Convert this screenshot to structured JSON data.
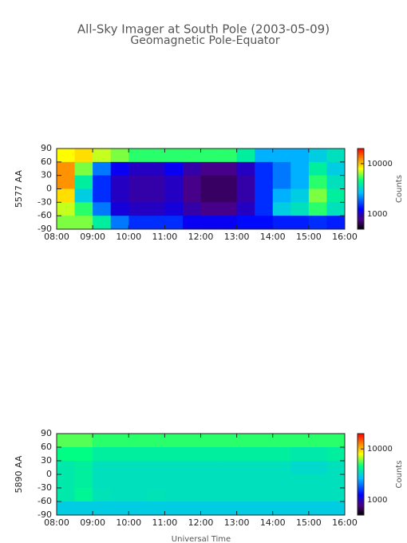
{
  "chart_data": [
    {
      "type": "heatmap",
      "title": "All-Sky Imager at South Pole (2003-05-09)",
      "subtitle": "Geomagnetic Pole-Equator",
      "ylabel": "5577 AA",
      "colorbar_label": "Counts",
      "color_scale": "log",
      "xlim": [
        8,
        16
      ],
      "xticks": [
        {
          "value": 8,
          "label": "08:00"
        },
        {
          "value": 9,
          "label": "09:00"
        },
        {
          "value": 10,
          "label": "10:00"
        },
        {
          "value": 11,
          "label": "11:00"
        },
        {
          "value": 12,
          "label": "12:00"
        },
        {
          "value": 13,
          "label": "13:00"
        },
        {
          "value": 14,
          "label": "14:00"
        },
        {
          "value": 15,
          "label": "15:00"
        },
        {
          "value": 16,
          "label": "16:00"
        }
      ],
      "ylim": [
        -90,
        90
      ],
      "yticks": [
        -90,
        -60,
        -30,
        0,
        30,
        60,
        90
      ],
      "clim": [
        500,
        20000
      ],
      "cticks": [
        1000,
        10000
      ],
      "x": [
        8.25,
        8.75,
        9.25,
        9.75,
        10.25,
        10.75,
        11.25,
        11.75,
        12.25,
        12.75,
        13.25,
        13.75,
        14.25,
        14.75,
        15.25,
        15.75
      ],
      "y": [
        75,
        45,
        15,
        -15,
        -45,
        -75
      ],
      "z": [
        [
          8000,
          9000,
          7000,
          6000,
          5000,
          5000,
          5000,
          5000,
          5000,
          5000,
          4000,
          2500,
          2500,
          2500,
          3000,
          3500
        ],
        [
          12000,
          6000,
          2000,
          1200,
          1000,
          1000,
          1200,
          900,
          800,
          800,
          1000,
          1500,
          2000,
          2500,
          4000,
          3000
        ],
        [
          12000,
          4000,
          1500,
          1000,
          900,
          900,
          1000,
          800,
          700,
          700,
          900,
          1500,
          2000,
          2500,
          5000,
          3500
        ],
        [
          9000,
          3000,
          1500,
          1000,
          900,
          900,
          1000,
          800,
          700,
          700,
          900,
          1500,
          2500,
          3000,
          6000,
          4000
        ],
        [
          7000,
          5000,
          2000,
          1100,
          1000,
          1000,
          1100,
          900,
          800,
          800,
          1000,
          1500,
          3000,
          3500,
          5000,
          3500
        ],
        [
          6000,
          6000,
          4000,
          2000,
          1500,
          1500,
          1500,
          1200,
          1200,
          1200,
          1300,
          1300,
          1400,
          1400,
          1500,
          1400
        ]
      ]
    },
    {
      "type": "heatmap",
      "ylabel": "5890 AA",
      "xlabel": "Universal Time",
      "colorbar_label": "Counts",
      "color_scale": "log",
      "xlim": [
        8,
        16
      ],
      "xticks": [
        {
          "value": 8,
          "label": "08:00"
        },
        {
          "value": 9,
          "label": "09:00"
        },
        {
          "value": 10,
          "label": "10:00"
        },
        {
          "value": 11,
          "label": "11:00"
        },
        {
          "value": 12,
          "label": "12:00"
        },
        {
          "value": 13,
          "label": "13:00"
        },
        {
          "value": 14,
          "label": "14:00"
        },
        {
          "value": 15,
          "label": "15:00"
        },
        {
          "value": 16,
          "label": "16:00"
        }
      ],
      "ylim": [
        -90,
        90
      ],
      "yticks": [
        -90,
        -60,
        -30,
        0,
        30,
        60,
        90
      ],
      "clim": [
        500,
        20000
      ],
      "cticks": [
        1000,
        10000
      ],
      "x": [
        8.25,
        8.75,
        9.25,
        9.75,
        10.25,
        10.75,
        11.25,
        11.75,
        12.25,
        12.75,
        13.25,
        13.75,
        14.25,
        14.75,
        15.25,
        15.75
      ],
      "y": [
        75,
        45,
        15,
        -15,
        -45,
        -75
      ],
      "z": [
        [
          5500,
          5500,
          5000,
          5000,
          5000,
          5000,
          5000,
          5000,
          5000,
          5000,
          5000,
          5000,
          5000,
          5000,
          5000,
          5000
        ],
        [
          4500,
          4500,
          4000,
          4000,
          4000,
          4000,
          4000,
          4000,
          4000,
          4000,
          4000,
          4000,
          4000,
          3800,
          3800,
          4000
        ],
        [
          3800,
          4000,
          3500,
          3500,
          3500,
          3500,
          3500,
          3500,
          3500,
          3500,
          3500,
          3500,
          3500,
          3300,
          3300,
          3500
        ],
        [
          3800,
          4000,
          3500,
          3500,
          3500,
          3500,
          3500,
          3500,
          3500,
          3500,
          3500,
          3500,
          3500,
          3500,
          3500,
          3500
        ],
        [
          3800,
          4200,
          3600,
          3500,
          3500,
          3600,
          3500,
          3500,
          3500,
          3500,
          3500,
          3500,
          3500,
          3500,
          3500,
          3500
        ],
        [
          3000,
          3000,
          3000,
          3000,
          3000,
          3000,
          3000,
          3000,
          3000,
          3000,
          3000,
          3000,
          3000,
          3000,
          3000,
          3000
        ]
      ]
    }
  ]
}
